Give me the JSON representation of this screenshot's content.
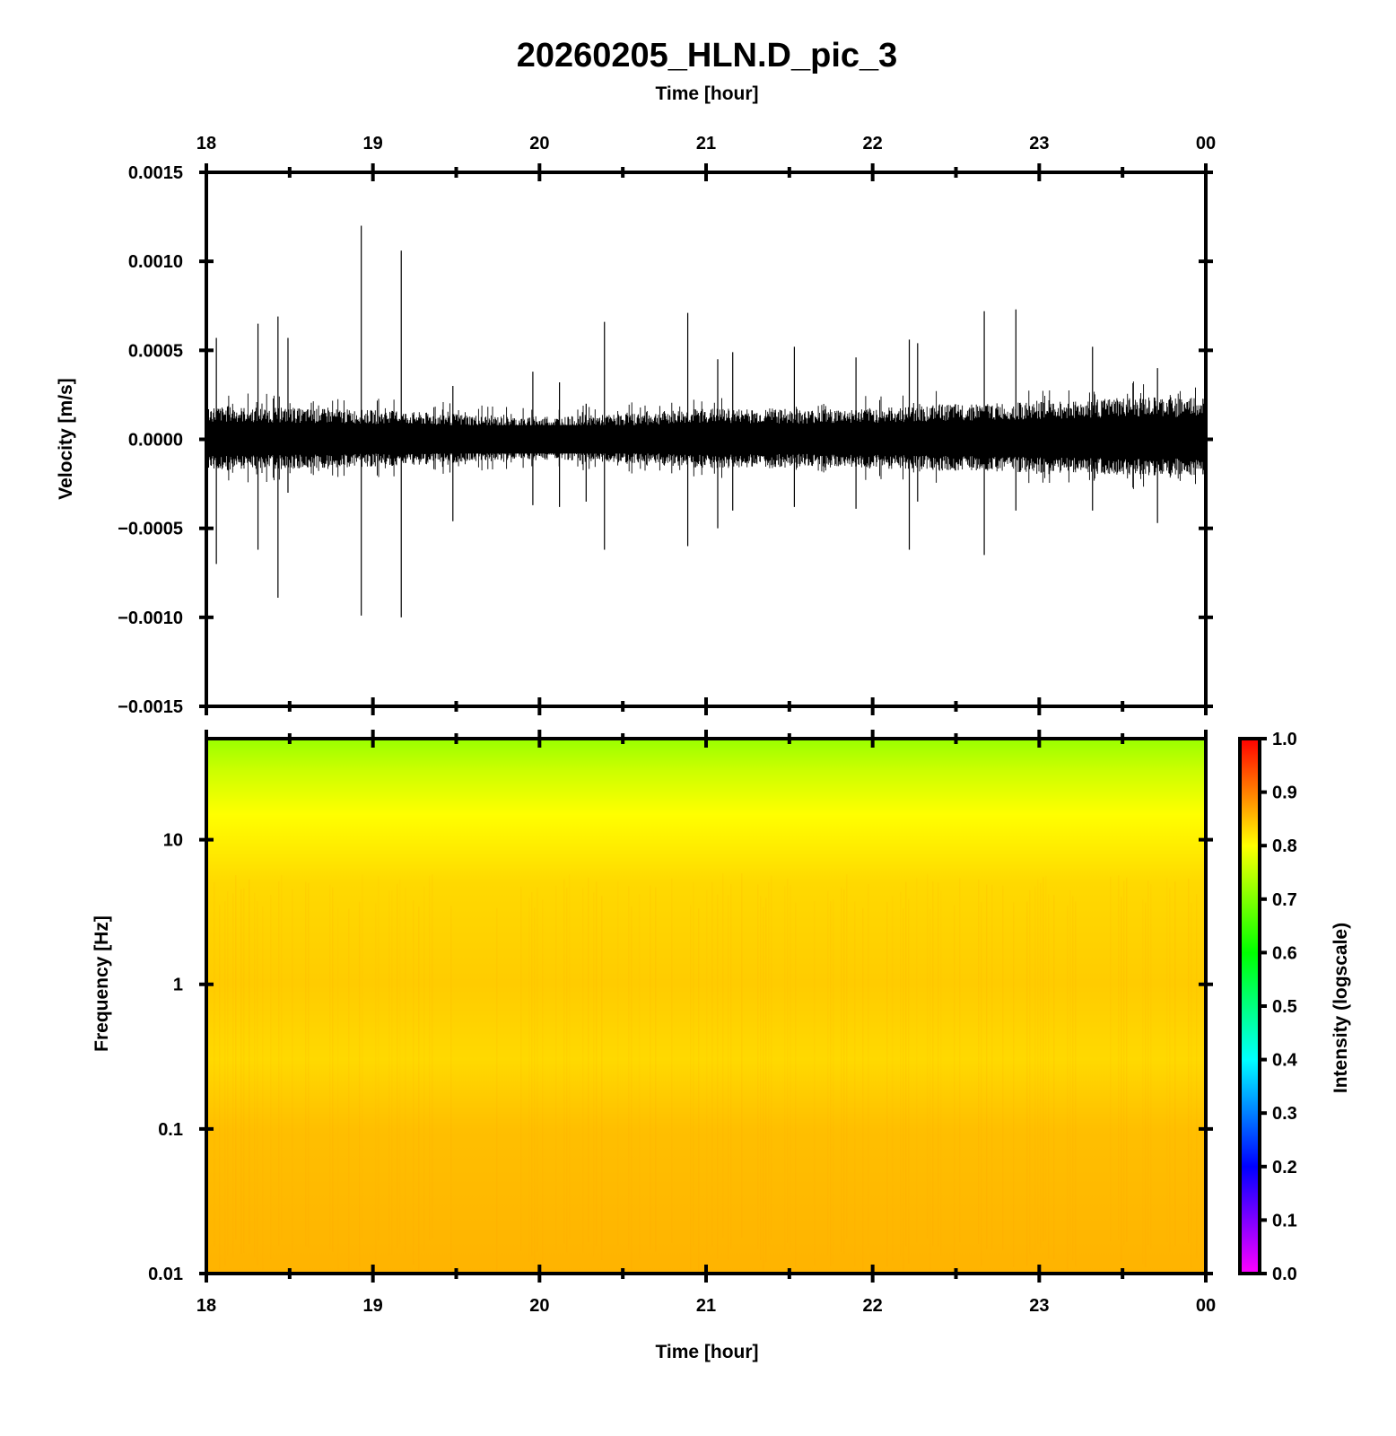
{
  "title": "20260205_HLN.D_pic_3",
  "chart_data": [
    {
      "panel": "waveform",
      "type": "line",
      "title": "20260205_HLN.D_pic_3",
      "xlabel": "Time [hour]",
      "ylabel": "Velocity [m/s]",
      "x_tick_labels": [
        "18",
        "19",
        "20",
        "21",
        "22",
        "23",
        "00"
      ],
      "x_range_hours": [
        18,
        24
      ],
      "y_tick_labels": [
        "0.0015",
        "0.0010",
        "0.0005",
        "0.0000",
        "−0.0005",
        "−0.0010",
        "−0.0015"
      ],
      "y_tick_values": [
        0.0015,
        0.001,
        0.0005,
        0,
        -0.0005,
        -0.001,
        -0.0015
      ],
      "ylim": [
        -0.0015,
        0.0015
      ],
      "series_color": "#000000",
      "noise_envelope": [
        {
          "x": 18.0,
          "pos": 0.00017,
          "neg": -0.00016
        },
        {
          "x": 18.5,
          "pos": 0.00016,
          "neg": -0.00015
        },
        {
          "x": 19.0,
          "pos": 0.00015,
          "neg": -0.00014
        },
        {
          "x": 19.5,
          "pos": 0.00013,
          "neg": -0.00012
        },
        {
          "x": 20.0,
          "pos": 0.00011,
          "neg": -0.0001
        },
        {
          "x": 20.5,
          "pos": 0.00013,
          "neg": -0.00012
        },
        {
          "x": 21.0,
          "pos": 0.00016,
          "neg": -0.00015
        },
        {
          "x": 21.5,
          "pos": 0.00015,
          "neg": -0.00014
        },
        {
          "x": 22.0,
          "pos": 0.00016,
          "neg": -0.00015
        },
        {
          "x": 22.5,
          "pos": 0.00018,
          "neg": -0.00016
        },
        {
          "x": 23.0,
          "pos": 0.00019,
          "neg": -0.00017
        },
        {
          "x": 23.5,
          "pos": 0.00021,
          "neg": -0.00018
        },
        {
          "x": 24.0,
          "pos": 0.00022,
          "neg": -0.00019
        }
      ],
      "spikes": [
        {
          "x": 18.06,
          "max": 0.00057,
          "min": -0.0007
        },
        {
          "x": 18.31,
          "max": 0.00065,
          "min": -0.00062
        },
        {
          "x": 18.43,
          "max": 0.00069,
          "min": -0.00089
        },
        {
          "x": 18.49,
          "max": 0.00057,
          "min": -0.0003
        },
        {
          "x": 18.93,
          "max": 0.0012,
          "min": -0.00099
        },
        {
          "x": 19.17,
          "max": 0.00106,
          "min": -0.001
        },
        {
          "x": 19.48,
          "max": 0.0003,
          "min": -0.00046
        },
        {
          "x": 19.96,
          "max": 0.00038,
          "min": -0.00037
        },
        {
          "x": 20.12,
          "max": 0.00032,
          "min": -0.00038
        },
        {
          "x": 20.28,
          "max": 0.0002,
          "min": -0.00035
        },
        {
          "x": 20.39,
          "max": 0.00066,
          "min": -0.00062
        },
        {
          "x": 20.89,
          "max": 0.00071,
          "min": -0.0006
        },
        {
          "x": 21.07,
          "max": 0.00045,
          "min": -0.0005
        },
        {
          "x": 21.16,
          "max": 0.00049,
          "min": -0.0004
        },
        {
          "x": 21.53,
          "max": 0.00052,
          "min": -0.00038
        },
        {
          "x": 21.9,
          "max": 0.00046,
          "min": -0.00039
        },
        {
          "x": 22.22,
          "max": 0.00056,
          "min": -0.00062
        },
        {
          "x": 22.27,
          "max": 0.00054,
          "min": -0.00035
        },
        {
          "x": 22.67,
          "max": 0.00072,
          "min": -0.00065
        },
        {
          "x": 22.86,
          "max": 0.00073,
          "min": -0.0004
        },
        {
          "x": 23.32,
          "max": 0.00052,
          "min": -0.0004
        },
        {
          "x": 23.71,
          "max": 0.0004,
          "min": -0.00047
        }
      ]
    },
    {
      "panel": "spectrogram",
      "type": "heatmap",
      "xlabel": "Time [hour]",
      "ylabel": "Frequency [Hz]",
      "x_tick_labels": [
        "18",
        "19",
        "20",
        "21",
        "22",
        "23",
        "00"
      ],
      "x_range_hours": [
        18,
        24
      ],
      "y_scale": "log",
      "y_tick_labels": [
        "10",
        "1",
        "0.1",
        "0.01"
      ],
      "y_tick_values": [
        10,
        1,
        0.1,
        0.01
      ],
      "ylim_hz": [
        0.01,
        50
      ],
      "colorbar": {
        "label": "Intensity (logscale)",
        "range": [
          0.0,
          1.0
        ],
        "tick_labels": [
          "1.0",
          "0.9",
          "0.8",
          "0.7",
          "0.6",
          "0.5",
          "0.4",
          "0.3",
          "0.2",
          "0.1",
          "0.0"
        ],
        "tick_values": [
          1.0,
          0.9,
          0.8,
          0.7,
          0.6,
          0.5,
          0.4,
          0.3,
          0.2,
          0.1,
          0.0
        ],
        "colormap": [
          {
            "v": 0.0,
            "color": "#ff00ff"
          },
          {
            "v": 0.2,
            "color": "#0000ff"
          },
          {
            "v": 0.4,
            "color": "#00ffff"
          },
          {
            "v": 0.6,
            "color": "#00ff00"
          },
          {
            "v": 0.8,
            "color": "#ffff00"
          },
          {
            "v": 1.0,
            "color": "#ff0000"
          }
        ]
      },
      "intensity_profile": [
        {
          "freq_hz": 50,
          "intensity": 0.72
        },
        {
          "freq_hz": 30,
          "intensity": 0.76
        },
        {
          "freq_hz": 15,
          "intensity": 0.8
        },
        {
          "freq_hz": 5,
          "intensity": 0.83
        },
        {
          "freq_hz": 1,
          "intensity": 0.84
        },
        {
          "freq_hz": 0.3,
          "intensity": 0.83
        },
        {
          "freq_hz": 0.1,
          "intensity": 0.85
        },
        {
          "freq_hz": 0.01,
          "intensity": 0.86
        }
      ]
    }
  ]
}
